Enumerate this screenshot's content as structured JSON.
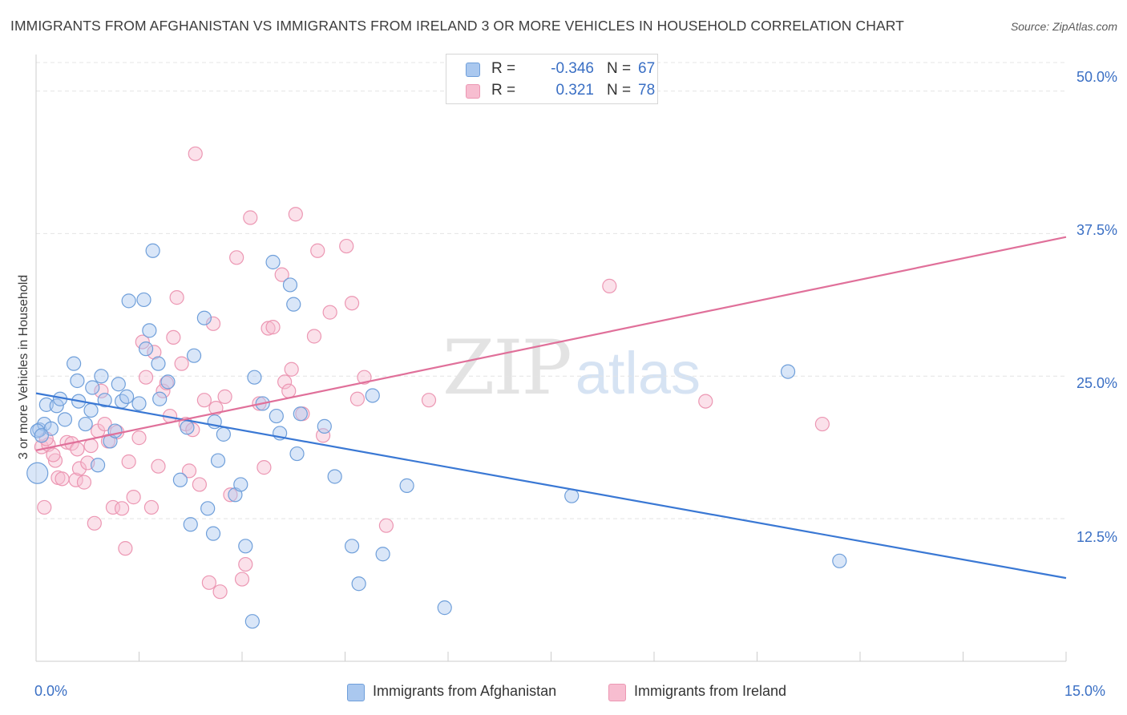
{
  "header": {
    "title": "IMMIGRANTS FROM AFGHANISTAN VS IMMIGRANTS FROM IRELAND 3 OR MORE VEHICLES IN HOUSEHOLD CORRELATION CHART",
    "source": "Source: ZipAtlas.com"
  },
  "watermark": {
    "zip": "ZIP",
    "atlas": "atlas"
  },
  "legend_top": {
    "afghanistan": {
      "r_label": "R =",
      "r_value": "-0.346",
      "n_label": "N =",
      "n_value": "67"
    },
    "ireland": {
      "r_label": "R =",
      "r_value": "0.321",
      "n_label": "N =",
      "n_value": "78"
    }
  },
  "legend_bottom": {
    "afghanistan": "Immigrants from Afghanistan",
    "ireland": "Immigrants from Ireland"
  },
  "axes": {
    "y_ticks": [
      "50.0%",
      "37.5%",
      "25.0%",
      "12.5%"
    ],
    "x_ticks": [
      "0.0%",
      "15.0%"
    ]
  },
  "colors": {
    "afghanistan_fill": "#aac8ef",
    "afghanistan_stroke": "#6f9fda",
    "afghanistan_line": "#3a78d4",
    "ireland_fill": "#f7bdd0",
    "ireland_stroke": "#ec97b3",
    "ireland_line": "#e0709a",
    "grid": "#e4e4e4",
    "tick_text": "#3a6fc4"
  },
  "chart_data": {
    "type": "scatter",
    "title": "IMMIGRANTS FROM AFGHANISTAN VS IMMIGRANTS FROM IRELAND 3 OR MORE VEHICLES IN HOUSEHOLD CORRELATION CHART",
    "xlabel": "",
    "ylabel": "3 or more Vehicles in Household",
    "xlim": [
      0,
      15
    ],
    "ylim": [
      0,
      52.5
    ],
    "x_ticks": [
      0,
      1.5,
      3,
      4.5,
      6,
      7.5,
      9,
      10.5,
      12,
      13.5,
      15
    ],
    "y_ticks": [
      12.5,
      25,
      37.5,
      50
    ],
    "grid": true,
    "legend_position": "top-center",
    "series": [
      {
        "name": "Immigrants from Afghanistan",
        "r": -0.346,
        "n": 67,
        "trend": {
          "x": [
            0,
            15
          ],
          "y": [
            23.5,
            7.3
          ]
        },
        "points": [
          [
            0.02,
            16.5
          ],
          [
            0.05,
            20.3
          ],
          [
            0.12,
            20.8
          ],
          [
            0.15,
            22.5
          ],
          [
            0.22,
            20.4
          ],
          [
            0.3,
            22.4
          ],
          [
            0.35,
            23.0
          ],
          [
            0.42,
            21.2
          ],
          [
            0.55,
            26.1
          ],
          [
            0.6,
            24.6
          ],
          [
            0.62,
            22.8
          ],
          [
            0.72,
            20.8
          ],
          [
            0.8,
            22.0
          ],
          [
            0.82,
            24.0
          ],
          [
            0.9,
            17.2
          ],
          [
            0.95,
            25.0
          ],
          [
            1.0,
            22.9
          ],
          [
            1.08,
            19.3
          ],
          [
            1.15,
            20.2
          ],
          [
            1.2,
            24.3
          ],
          [
            1.25,
            22.8
          ],
          [
            1.32,
            23.2
          ],
          [
            1.35,
            31.6
          ],
          [
            1.5,
            22.6
          ],
          [
            1.57,
            31.7
          ],
          [
            1.6,
            27.4
          ],
          [
            1.65,
            29.0
          ],
          [
            1.7,
            36.0
          ],
          [
            1.78,
            26.1
          ],
          [
            1.8,
            23.0
          ],
          [
            1.92,
            24.5
          ],
          [
            2.1,
            15.9
          ],
          [
            2.2,
            20.5
          ],
          [
            2.25,
            12.0
          ],
          [
            2.3,
            26.8
          ],
          [
            2.45,
            30.1
          ],
          [
            2.5,
            13.4
          ],
          [
            2.58,
            11.2
          ],
          [
            2.6,
            21.0
          ],
          [
            2.65,
            17.6
          ],
          [
            2.73,
            19.9
          ],
          [
            2.9,
            14.6
          ],
          [
            2.98,
            15.5
          ],
          [
            3.05,
            10.1
          ],
          [
            3.15,
            3.5
          ],
          [
            3.18,
            24.9
          ],
          [
            3.3,
            22.6
          ],
          [
            3.45,
            35.0
          ],
          [
            3.5,
            21.5
          ],
          [
            3.55,
            20.0
          ],
          [
            3.7,
            33.0
          ],
          [
            3.75,
            31.3
          ],
          [
            3.8,
            18.2
          ],
          [
            3.85,
            21.7
          ],
          [
            4.2,
            20.6
          ],
          [
            4.35,
            16.2
          ],
          [
            4.6,
            10.1
          ],
          [
            4.7,
            6.8
          ],
          [
            4.9,
            23.3
          ],
          [
            5.05,
            9.4
          ],
          [
            5.4,
            15.4
          ],
          [
            5.95,
            4.7
          ],
          [
            7.8,
            14.5
          ],
          [
            10.95,
            25.4
          ],
          [
            11.7,
            8.8
          ],
          [
            0.02,
            20.2
          ],
          [
            0.08,
            19.8
          ]
        ]
      },
      {
        "name": "Immigrants from Ireland",
        "r": 0.321,
        "n": 78,
        "trend": {
          "x": [
            0,
            15
          ],
          "y": [
            18.5,
            37.2
          ]
        },
        "points": [
          [
            0.08,
            18.8
          ],
          [
            0.12,
            13.5
          ],
          [
            0.18,
            19.0
          ],
          [
            0.28,
            17.6
          ],
          [
            0.32,
            16.1
          ],
          [
            0.38,
            16.0
          ],
          [
            0.45,
            19.2
          ],
          [
            0.52,
            19.1
          ],
          [
            0.58,
            15.9
          ],
          [
            0.63,
            16.9
          ],
          [
            0.7,
            15.7
          ],
          [
            0.75,
            17.4
          ],
          [
            0.8,
            18.9
          ],
          [
            0.85,
            12.1
          ],
          [
            0.9,
            20.2
          ],
          [
            0.95,
            23.7
          ],
          [
            1.0,
            20.8
          ],
          [
            1.05,
            19.3
          ],
          [
            1.12,
            13.5
          ],
          [
            1.18,
            20.1
          ],
          [
            1.25,
            13.4
          ],
          [
            1.3,
            9.9
          ],
          [
            1.35,
            17.5
          ],
          [
            1.42,
            14.4
          ],
          [
            1.5,
            19.6
          ],
          [
            1.55,
            28.0
          ],
          [
            1.6,
            24.9
          ],
          [
            1.68,
            13.5
          ],
          [
            1.72,
            27.1
          ],
          [
            1.78,
            17.1
          ],
          [
            1.85,
            23.7
          ],
          [
            1.9,
            24.4
          ],
          [
            1.95,
            21.5
          ],
          [
            2.0,
            28.4
          ],
          [
            2.05,
            31.9
          ],
          [
            2.12,
            26.1
          ],
          [
            2.18,
            20.8
          ],
          [
            2.23,
            16.7
          ],
          [
            2.28,
            20.3
          ],
          [
            2.32,
            44.5
          ],
          [
            2.38,
            15.5
          ],
          [
            2.45,
            22.9
          ],
          [
            2.52,
            6.9
          ],
          [
            2.58,
            29.6
          ],
          [
            2.62,
            22.2
          ],
          [
            2.68,
            6.1
          ],
          [
            2.75,
            23.2
          ],
          [
            2.83,
            14.6
          ],
          [
            2.92,
            35.4
          ],
          [
            3.0,
            7.2
          ],
          [
            3.05,
            8.5
          ],
          [
            3.12,
            38.9
          ],
          [
            3.25,
            22.6
          ],
          [
            3.32,
            17.0
          ],
          [
            3.38,
            29.2
          ],
          [
            3.45,
            29.3
          ],
          [
            3.58,
            33.9
          ],
          [
            3.62,
            24.5
          ],
          [
            3.68,
            23.7
          ],
          [
            3.72,
            25.6
          ],
          [
            3.78,
            39.2
          ],
          [
            3.88,
            21.7
          ],
          [
            4.05,
            28.5
          ],
          [
            4.1,
            36.0
          ],
          [
            4.18,
            19.8
          ],
          [
            4.28,
            30.6
          ],
          [
            4.52,
            36.4
          ],
          [
            4.6,
            31.4
          ],
          [
            4.68,
            23.0
          ],
          [
            4.78,
            24.9
          ],
          [
            5.1,
            11.9
          ],
          [
            5.72,
            22.9
          ],
          [
            8.35,
            32.9
          ],
          [
            9.75,
            22.8
          ],
          [
            11.45,
            20.8
          ],
          [
            0.15,
            19.5
          ],
          [
            0.25,
            18.1
          ],
          [
            0.6,
            18.6
          ]
        ]
      }
    ]
  }
}
